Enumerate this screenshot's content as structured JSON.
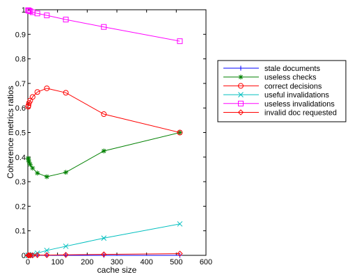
{
  "chart_data": {
    "type": "line",
    "title": "",
    "xlabel": "cache size",
    "ylabel": "Coherence metrics ratios",
    "xlim": [
      0,
      600
    ],
    "ylim": [
      0,
      1
    ],
    "xticks": [
      0,
      100,
      200,
      300,
      400,
      500,
      600
    ],
    "yticks": [
      0,
      0.1,
      0.2,
      0.3,
      0.4,
      0.5,
      0.6,
      0.7,
      0.8,
      0.9,
      1
    ],
    "grid": false,
    "legend_position": "right",
    "series": [
      {
        "name": "stale documents",
        "color": "#0000ff",
        "marker": "plus",
        "x": [
          1,
          2,
          4,
          8,
          16,
          32,
          64,
          128,
          256,
          512
        ],
        "y": [
          0,
          0,
          0,
          0,
          0,
          0,
          0,
          0,
          0,
          0
        ]
      },
      {
        "name": "useless checks",
        "color": "#008000",
        "marker": "star",
        "x": [
          1,
          2,
          4,
          8,
          16,
          32,
          64,
          128,
          256,
          512
        ],
        "y": [
          0.395,
          0.39,
          0.38,
          0.37,
          0.355,
          0.335,
          0.32,
          0.338,
          0.425,
          0.5
        ]
      },
      {
        "name": "correct decisions",
        "color": "#ff0000",
        "marker": "circle",
        "x": [
          1,
          2,
          4,
          8,
          16,
          32,
          64,
          128,
          256,
          512
        ],
        "y": [
          0.605,
          0.61,
          0.62,
          0.63,
          0.645,
          0.665,
          0.68,
          0.662,
          0.575,
          0.5
        ]
      },
      {
        "name": "useful invalidations",
        "color": "#00bfbf",
        "marker": "x",
        "x": [
          1,
          2,
          4,
          8,
          16,
          32,
          64,
          128,
          256,
          512
        ],
        "y": [
          0,
          0,
          0,
          0.001,
          0.003,
          0.009,
          0.02,
          0.037,
          0.07,
          0.128
        ]
      },
      {
        "name": "useless invalidations",
        "color": "#ff00ff",
        "marker": "square",
        "x": [
          1,
          2,
          4,
          8,
          16,
          32,
          64,
          128,
          256,
          512
        ],
        "y": [
          0.998,
          0.997,
          0.996,
          0.994,
          0.99,
          0.985,
          0.977,
          0.96,
          0.93,
          0.872
        ]
      },
      {
        "name": "invalid doc requested",
        "color": "#ff0000",
        "marker": "diamond",
        "x": [
          1,
          2,
          4,
          8,
          16,
          32,
          64,
          128,
          256,
          512
        ],
        "y": [
          0,
          0,
          0,
          0,
          0,
          0.001,
          0.001,
          0.002,
          0.004,
          0.007
        ]
      }
    ]
  }
}
